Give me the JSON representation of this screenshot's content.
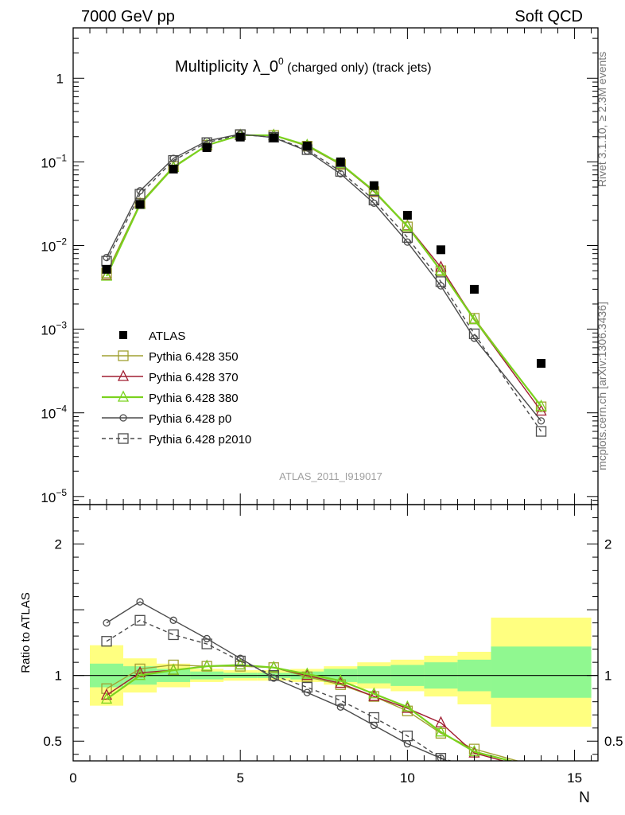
{
  "header": {
    "left": "7000 GeV pp",
    "right": "Soft QCD"
  },
  "side_labels": {
    "top": "Rivet 3.1.10, ≥ 2.3M events",
    "bottom": "mcplots.cern.ch [arXiv:1306.3436]"
  },
  "chart_data": {
    "type": "line",
    "title_main": "Multiplicity λ_0",
    "title_sup": "0",
    "title_small": " (charged only) (track jets)",
    "analysis_label": "ATLAS_2011_I919017",
    "xlabel": "N",
    "ylabel_ratio": "Ratio to ATLAS",
    "xlim": [
      0,
      15.7
    ],
    "ylim_main": [
      8e-06,
      4
    ],
    "ylim_ratio": [
      0.35,
      2.3
    ],
    "log_y_main": true,
    "x_ticks": [
      0,
      5,
      10,
      15
    ],
    "main_y_ticks": [
      {
        "value": 1,
        "base": "1",
        "exp": ""
      },
      {
        "value": 0.1,
        "base": "10",
        "exp": "−1"
      },
      {
        "value": 0.01,
        "base": "10",
        "exp": "−2"
      },
      {
        "value": 0.001,
        "base": "10",
        "exp": "−3"
      },
      {
        "value": 0.0001,
        "base": "10",
        "exp": "−4"
      },
      {
        "value": 1e-05,
        "base": "10",
        "exp": "−5"
      }
    ],
    "ratio_y_ticks": [
      {
        "value": 0.5,
        "label": "0.5"
      },
      {
        "value": 1,
        "label": "1"
      },
      {
        "value": 2,
        "label": "2"
      }
    ],
    "data": {
      "name": "ATLAS",
      "x": [
        1,
        2,
        3,
        4,
        5,
        6,
        7,
        8,
        9,
        10,
        11,
        12,
        14
      ],
      "y": [
        0.0052,
        0.031,
        0.082,
        0.148,
        0.198,
        0.195,
        0.155,
        0.1,
        0.052,
        0.023,
        0.0089,
        0.003,
        0.00039
      ]
    },
    "bands": [
      {
        "xlo": 0.5,
        "xhi": 1.5,
        "inner": [
          0.91,
          1.09
        ],
        "outer": [
          0.77,
          1.23
        ]
      },
      {
        "xlo": 1.5,
        "xhi": 2.5,
        "inner": [
          0.93,
          1.07
        ],
        "outer": [
          0.87,
          1.13
        ]
      },
      {
        "xlo": 2.5,
        "xhi": 3.5,
        "inner": [
          0.95,
          1.05
        ],
        "outer": [
          0.91,
          1.09
        ]
      },
      {
        "xlo": 3.5,
        "xhi": 4.5,
        "inner": [
          0.97,
          1.03
        ],
        "outer": [
          0.95,
          1.05
        ]
      },
      {
        "xlo": 4.5,
        "xhi": 5.5,
        "inner": [
          0.98,
          1.02
        ],
        "outer": [
          0.96,
          1.04
        ]
      },
      {
        "xlo": 5.5,
        "xhi": 6.5,
        "inner": [
          0.98,
          1.02
        ],
        "outer": [
          0.96,
          1.04
        ]
      },
      {
        "xlo": 6.5,
        "xhi": 7.5,
        "inner": [
          0.97,
          1.03
        ],
        "outer": [
          0.95,
          1.05
        ]
      },
      {
        "xlo": 7.5,
        "xhi": 8.5,
        "inner": [
          0.95,
          1.05
        ],
        "outer": [
          0.93,
          1.07
        ]
      },
      {
        "xlo": 8.5,
        "xhi": 9.5,
        "inner": [
          0.94,
          1.07
        ],
        "outer": [
          0.9,
          1.1
        ]
      },
      {
        "xlo": 9.5,
        "xhi": 10.5,
        "inner": [
          0.92,
          1.08
        ],
        "outer": [
          0.88,
          1.12
        ]
      },
      {
        "xlo": 10.5,
        "xhi": 11.5,
        "inner": [
          0.9,
          1.1
        ],
        "outer": [
          0.84,
          1.15
        ]
      },
      {
        "xlo": 11.5,
        "xhi": 12.5,
        "inner": [
          0.88,
          1.12
        ],
        "outer": [
          0.78,
          1.18
        ]
      },
      {
        "xlo": 12.5,
        "xhi": 15.5,
        "inner": [
          0.83,
          1.22
        ],
        "outer": [
          0.61,
          1.44
        ]
      }
    ],
    "series": [
      {
        "name": "Pythia 6.428 350",
        "color": "#a0a032",
        "marker": "square",
        "dashed": false,
        "x": [
          1,
          2,
          3,
          4,
          5,
          6,
          7,
          8,
          9,
          10,
          11,
          12,
          14
        ],
        "y": [
          0.0047,
          0.032,
          0.088,
          0.158,
          0.21,
          0.207,
          0.154,
          0.093,
          0.044,
          0.0167,
          0.005,
          0.00135,
          0.000118
        ],
        "ratio": [
          0.9,
          1.05,
          1.08,
          1.07,
          1.07,
          1.06,
          0.99,
          0.93,
          0.84,
          0.73,
          0.56,
          0.44,
          0.3
        ]
      },
      {
        "name": "Pythia 6.428 370",
        "color": "#a01e32",
        "marker": "triangle",
        "dashed": false,
        "x": [
          1,
          2,
          3,
          4,
          5,
          6,
          7,
          8,
          9,
          10,
          11,
          12,
          14
        ],
        "y": [
          0.0044,
          0.0315,
          0.086,
          0.157,
          0.208,
          0.208,
          0.156,
          0.094,
          0.044,
          0.0172,
          0.0055,
          0.0013,
          0.000105
        ],
        "ratio": [
          0.85,
          1.02,
          1.04,
          1.07,
          1.08,
          1.06,
          1.0,
          0.94,
          0.84,
          0.75,
          0.64,
          0.41,
          0.27
        ]
      },
      {
        "name": "Pythia 6.428 380",
        "color": "#7ad21e",
        "marker": "triangle",
        "dashed": false,
        "x": [
          1,
          2,
          3,
          4,
          5,
          6,
          7,
          8,
          9,
          10,
          11,
          12,
          14
        ],
        "y": [
          0.0043,
          0.031,
          0.086,
          0.158,
          0.208,
          0.208,
          0.158,
          0.095,
          0.045,
          0.017,
          0.005,
          0.0013,
          0.00012
        ],
        "ratio": [
          0.82,
          1.0,
          1.04,
          1.07,
          1.08,
          1.06,
          1.01,
          0.96,
          0.86,
          0.76,
          0.57,
          0.42,
          0.29
        ]
      },
      {
        "name": "Pythia 6.428 p0",
        "color": "#4b4b4b",
        "marker": "circle",
        "dashed": false,
        "x": [
          1,
          2,
          3,
          4,
          5,
          6,
          7,
          8,
          9,
          10,
          11,
          12,
          14
        ],
        "y": [
          0.0072,
          0.045,
          0.11,
          0.178,
          0.215,
          0.195,
          0.135,
          0.072,
          0.032,
          0.011,
          0.0033,
          0.00078,
          8e-05
        ],
        "ratio": [
          1.4,
          1.56,
          1.42,
          1.28,
          1.13,
          0.98,
          0.87,
          0.76,
          0.62,
          0.48,
          0.37,
          0.26,
          0.2
        ]
      },
      {
        "name": "Pythia 6.428 p2010",
        "color": "#4b4b4b",
        "marker": "square",
        "dashed": true,
        "x": [
          1,
          2,
          3,
          4,
          5,
          6,
          7,
          8,
          9,
          10,
          11,
          12,
          14
        ],
        "y": [
          0.0065,
          0.041,
          0.104,
          0.17,
          0.212,
          0.197,
          0.14,
          0.077,
          0.035,
          0.0125,
          0.0037,
          0.00088,
          6e-05
        ],
        "ratio": [
          1.26,
          1.42,
          1.31,
          1.24,
          1.11,
          1.0,
          0.91,
          0.81,
          0.68,
          0.54,
          0.37,
          0.3,
          0.15
        ]
      }
    ]
  }
}
